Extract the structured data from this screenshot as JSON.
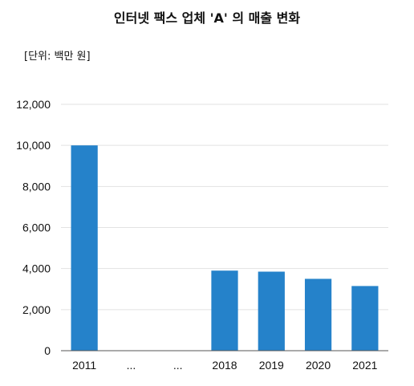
{
  "chart_data": {
    "type": "bar",
    "title": "인터넷 팩스 업체 'A' 의 매출 변화",
    "unit_label": "[단위: 백만 원]",
    "categories": [
      "2011",
      "...",
      "...",
      "2018",
      "2019",
      "2020",
      "2021"
    ],
    "values": [
      10000,
      null,
      null,
      3900,
      3850,
      3500,
      3150
    ],
    "ylim": [
      0,
      12000
    ],
    "yticks": [
      "0",
      "2,000",
      "4,000",
      "6,000",
      "8,000",
      "10,000",
      "12,000"
    ],
    "ytick_values": [
      0,
      2000,
      4000,
      6000,
      8000,
      10000,
      12000
    ],
    "xlabel": "",
    "ylabel": "",
    "grid": true,
    "bar_color": "#2582ca"
  }
}
